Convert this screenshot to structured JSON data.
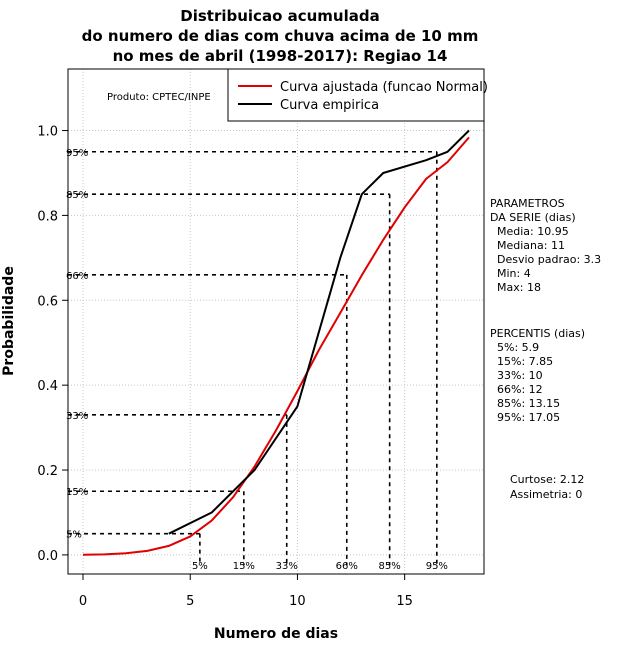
{
  "chart_data": {
    "type": "line",
    "title": [
      "Distribuicao acumulada",
      "do numero de dias com chuva acima de 10 mm",
      "no mes de abril (1998-2017): Regiao 14"
    ],
    "xlabel": "Numero de dias",
    "ylabel": "Probabilidade",
    "xlim": [
      -0.7,
      18.7
    ],
    "ylim": [
      -0.045,
      1.145
    ],
    "x_ticks": [
      0,
      5,
      10,
      15
    ],
    "y_ticks": [
      0.0,
      0.2,
      0.4,
      0.6,
      0.8,
      1.0
    ],
    "x_tick_labels": [
      "0",
      "5",
      "10",
      "15"
    ],
    "y_tick_labels": [
      "0.0",
      "0.2",
      "0.4",
      "0.6",
      "0.8",
      "1.0"
    ],
    "grid": true,
    "series": [
      {
        "name": "Curva ajustada (funcao Normal)",
        "color": "#e00000",
        "x": [
          0,
          1,
          2,
          3,
          4,
          5,
          6,
          7,
          8,
          9,
          10,
          11,
          12,
          13,
          14,
          15,
          16,
          17,
          18
        ],
        "y": [
          0.0004,
          0.0013,
          0.0037,
          0.0094,
          0.0213,
          0.0436,
          0.0808,
          0.1359,
          0.2082,
          0.2933,
          0.3859,
          0.4828,
          0.5702,
          0.6592,
          0.7422,
          0.8192,
          0.8861,
          0.9257,
          0.9838
        ]
      },
      {
        "name": "Curva empirica",
        "color": "#000000",
        "x": [
          4,
          6,
          8,
          10,
          12,
          13,
          14,
          16,
          17,
          18
        ],
        "y": [
          0.05,
          0.1,
          0.2,
          0.35,
          0.7,
          0.85,
          0.9,
          0.93,
          0.95,
          1.0
        ]
      }
    ],
    "percentiles": [
      {
        "label": "5%",
        "x": 5.9,
        "p": 0.05
      },
      {
        "label": "15%",
        "x": 7.85,
        "p": 0.15
      },
      {
        "label": "33%",
        "x": 10,
        "p": 0.33
      },
      {
        "label": "66%",
        "x": 12,
        "p": 0.66
      },
      {
        "label": "85%",
        "x": 13.15,
        "p": 0.85
      },
      {
        "label": "95%",
        "x": 17.05,
        "p": 0.95
      }
    ],
    "percentile_lines": [
      {
        "label": "5%",
        "x": 5.45,
        "p": 0.05
      },
      {
        "label": "15%",
        "x": 7.5,
        "p": 0.15
      },
      {
        "label": "33%",
        "x": 9.5,
        "p": 0.33
      },
      {
        "label": "66%",
        "x": 12.3,
        "p": 0.66
      },
      {
        "label": "85%",
        "x": 14.3,
        "p": 0.85
      },
      {
        "label": "95%",
        "x": 16.5,
        "p": 0.95
      }
    ],
    "legend": {
      "position": "top-right",
      "entries": [
        "Curva ajustada (funcao Normal)",
        "Curva empirica"
      ]
    },
    "source": "Produto: CPTEC/INPE"
  },
  "side_panel": {
    "parametros_title": [
      "PARAMETROS",
      "DA SERIE (dias)"
    ],
    "parametros": [
      "Media: 10.95",
      "Mediana: 11",
      "Desvio padrao: 3.3",
      "Min: 4",
      "Max: 18"
    ],
    "percentis_title": "PERCENTIS (dias)",
    "percentis": [
      "5%: 5.9",
      "15%: 7.85",
      "33%: 10",
      "66%: 12",
      "85%: 13.15",
      "95%: 17.05"
    ],
    "curtose": "Curtose: 2.12",
    "assimetria": "Assimetria: 0"
  }
}
